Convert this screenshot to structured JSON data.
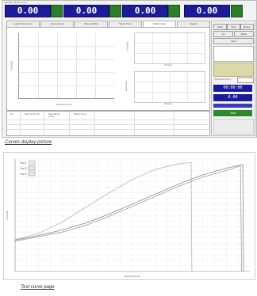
{
  "window": {
    "title_bar": "Sample: 0000   0.0   0.0"
  },
  "readouts": [
    {
      "value": "0.00"
    },
    {
      "value": "0.00"
    },
    {
      "value": "0.00"
    },
    {
      "value": "0.00"
    }
  ],
  "tabs": [
    {
      "label": "Load-Time Curve"
    },
    {
      "label": "Force-Strain"
    },
    {
      "label": "Stress-Strain"
    },
    {
      "label": "Strain-Time"
    },
    {
      "label": "Multi-Curve"
    },
    {
      "label": "Report"
    }
  ],
  "main_chart": {
    "ylabel": "Force(N)",
    "xlabel": "Extension(mm)"
  },
  "small_chart_top": {
    "ylabel": "Force(N)",
    "xlabel": "Time(s)"
  },
  "small_chart_bottom": {
    "ylabel": "Extension",
    "xlabel": "Time(s)"
  },
  "table": {
    "headers": [
      "No.",
      "Max Force (N)",
      "Max Elong. (mm)",
      "Break Force"
    ]
  },
  "side_panel": {
    "buttons": [
      "Start",
      "Stop",
      "Return",
      "Up",
      "Down",
      "Zero"
    ],
    "info_label": "Speed(mm/min)",
    "blue_display_1": "00:00:00",
    "blue_display_2": "0.00",
    "green_button": "Test"
  },
  "captions": {
    "top": "Curves display picture",
    "bottom": "Test curve page"
  },
  "chart_data": {
    "type": "line",
    "title": "",
    "xlabel": "Extension(mm)",
    "ylabel": "Force(N)",
    "legend": [
      "Test 1",
      "Test 2",
      "Test 3"
    ],
    "legend_position": "top-left",
    "xlim": [
      0,
      100
    ],
    "ylim": [
      0,
      100
    ],
    "series": [
      {
        "name": "Test 1",
        "x": [
          0,
          10,
          20,
          30,
          40,
          50,
          60,
          70,
          75,
          75.3
        ],
        "y": [
          28,
          34,
          44,
          57,
          70,
          82,
          91,
          96,
          97,
          0
        ]
      },
      {
        "name": "Test 2",
        "x": [
          0,
          10,
          20,
          30,
          40,
          50,
          60,
          70,
          80,
          90,
          97,
          97.3
        ],
        "y": [
          28,
          32,
          37,
          43,
          51,
          60,
          69,
          78,
          86,
          92,
          95,
          0
        ]
      },
      {
        "name": "Test 3",
        "x": [
          0,
          10,
          20,
          30,
          40,
          50,
          60,
          70,
          80,
          90,
          96,
          96.5
        ],
        "y": [
          27,
          31,
          35,
          41,
          49,
          58,
          67,
          76,
          84,
          90,
          94,
          0
        ]
      }
    ]
  }
}
